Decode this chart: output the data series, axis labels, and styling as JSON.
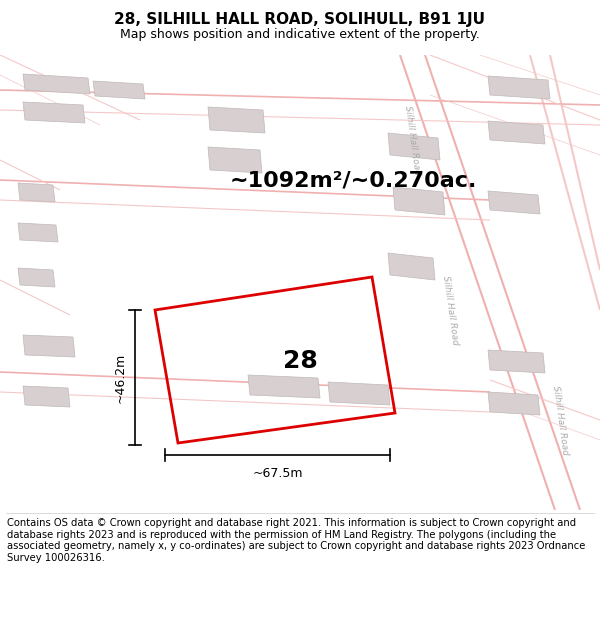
{
  "title": "28, SILHILL HALL ROAD, SOLIHULL, B91 1JU",
  "subtitle": "Map shows position and indicative extent of the property.",
  "area_text": "~1092m²/~0.270ac.",
  "property_number": "28",
  "dim_width": "~67.5m",
  "dim_height": "~46.2m",
  "footer": "Contains OS data © Crown copyright and database right 2021. This information is subject to Crown copyright and database rights 2023 and is reproduced with the permission of HM Land Registry. The polygons (including the associated geometry, namely x, y co-ordinates) are subject to Crown copyright and database rights 2023 Ordnance Survey 100026316.",
  "map_bg": "#ffffff",
  "road_color": "#f0b0b0",
  "road_color2": "#f5c8c8",
  "building_color": "#d8d0d0",
  "building_edge": "#c0b8b8",
  "property_line_color": "#dd0000",
  "text_color": "#000000",
  "header_bg": "#ffffff",
  "footer_bg": "#ffffff",
  "title_fontsize": 11,
  "subtitle_fontsize": 9,
  "area_fontsize": 16,
  "label_fontsize": 18,
  "dim_fontsize": 9,
  "footer_fontsize": 7.2,
  "road_label": "Silhill Hall Road",
  "road_label_color": "#aaaaaa"
}
